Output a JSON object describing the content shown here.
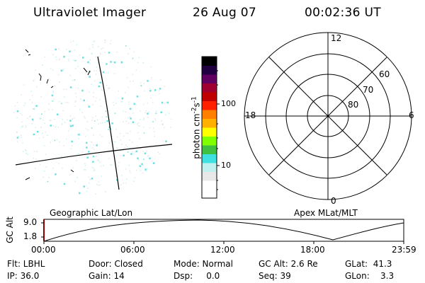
{
  "header": {
    "title": "Ultraviolet Imager",
    "date": "26 Aug 07",
    "time": "00:02:36 UT"
  },
  "colorbar": {
    "label": "photon cm",
    "label_exp1": "-2",
    "label_mid": "s",
    "label_exp2": "-1",
    "ticks": [
      "100",
      "10"
    ],
    "colors": [
      "#ffffff",
      "#ffffff",
      "#e8e8e8",
      "#c0f0f0",
      "#40e0e0",
      "#40c040",
      "#80ff00",
      "#ffff00",
      "#ffb000",
      "#ff8000",
      "#ff2000",
      "#c00000",
      "#a00030",
      "#600060",
      "#200040",
      "#000000"
    ]
  },
  "left_panel": {
    "label": "Geographic Lat/Lon"
  },
  "polar_plot": {
    "label": "Apex MLat/MLT",
    "mlt_labels": {
      "top": "12",
      "bottom": "0",
      "left": "18",
      "right": "6"
    },
    "lat_labels": [
      "60",
      "70",
      "80"
    ]
  },
  "altitude_strip": {
    "axis_label": "GC Alt",
    "y_ticks": [
      "9.0",
      "1.8"
    ],
    "x_ticks": [
      "00:00",
      "06:00",
      "12:00",
      "18:00",
      "23:59"
    ]
  },
  "info": {
    "flt": "Flt: LBHL",
    "ip": "IP: 36.0",
    "door": "Door: Closed",
    "gain": "Gain: 14",
    "mode": "Mode: Normal",
    "dsp": "Dsp:     0.0",
    "gc_alt": "GC Alt: 2.6 Re",
    "seq": "Seq: 39",
    "glat": "GLat:  41.3",
    "glon": "GLon:    3.3"
  }
}
